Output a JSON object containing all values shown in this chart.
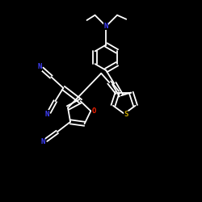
{
  "bg_color": "#000000",
  "bond_color": "#ffffff",
  "N_color": "#4040ff",
  "S_color": "#ccaa00",
  "O_color": "#ff2200",
  "bond_width": 1.3,
  "dbo": 0.01,
  "figsize": [
    2.5,
    2.5
  ],
  "dpi": 100,
  "xlim": [
    0,
    1
  ],
  "ylim": [
    0,
    1
  ]
}
